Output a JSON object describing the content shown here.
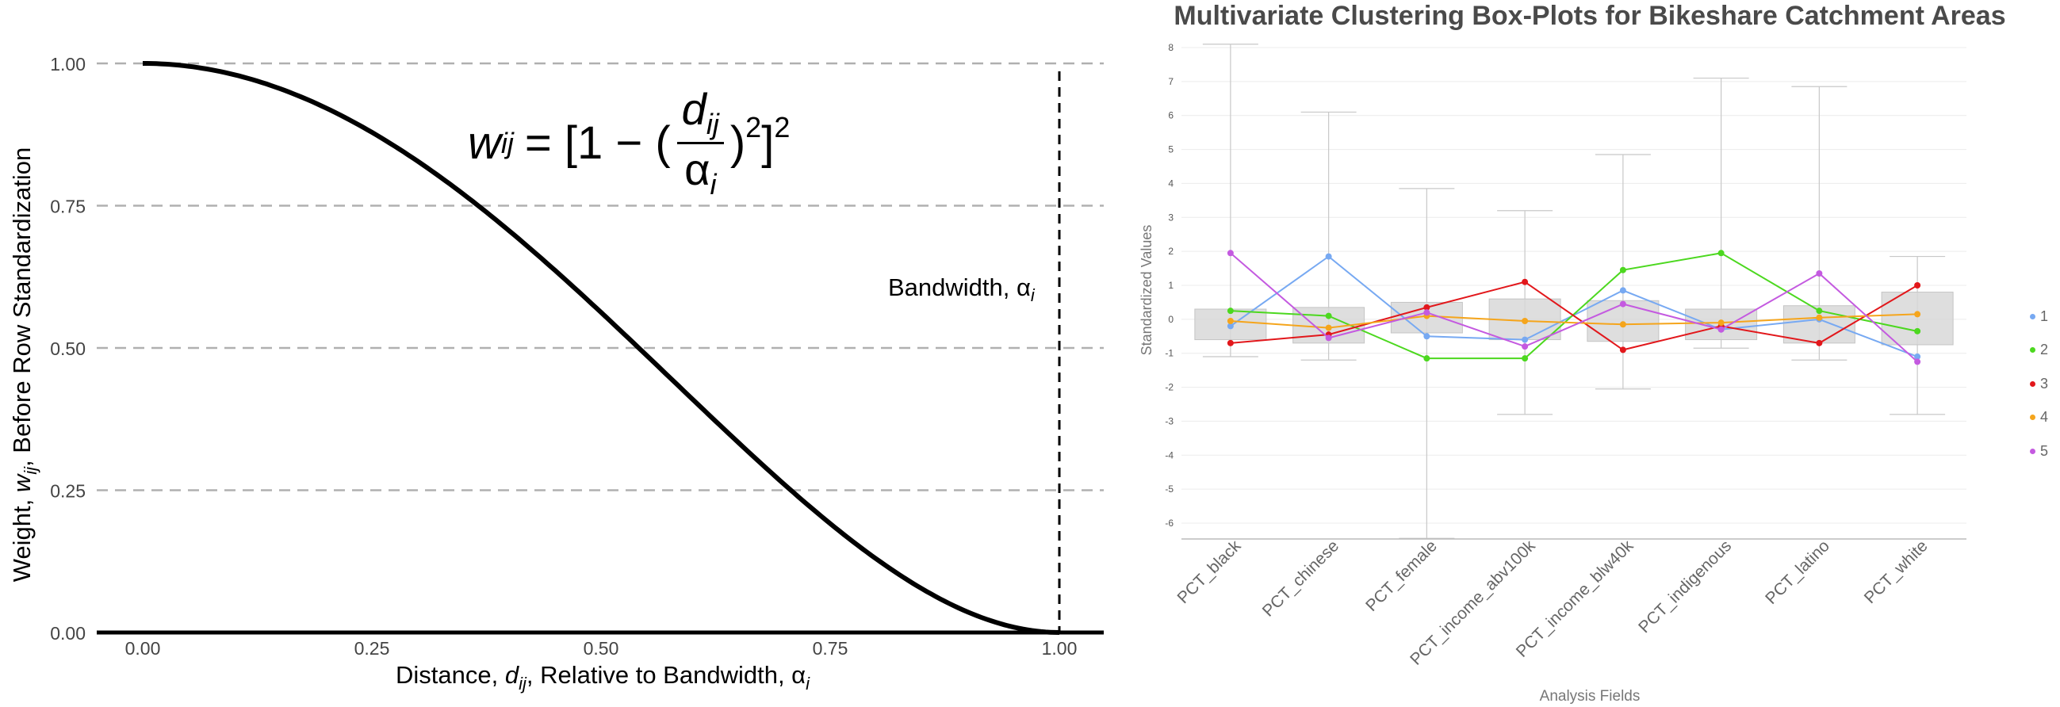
{
  "chart_data": [
    {
      "type": "line",
      "xlabel": "Distance, d_ij, Relative to Bandwidth, α_i",
      "ylabel": "Weight, w_ij, Before Row Standardization",
      "formula": {
        "lhs": "w",
        "lhs_sub": "ij",
        "eq": "= [1 − (",
        "num": "d",
        "num_sub": "ij",
        "den": "α",
        "den_sub": "i",
        "close": ")",
        "sq1": "2",
        "bracket_close": "]",
        "sq2": "2"
      },
      "annotation": "Bandwidth, α_i",
      "xlim": [
        -0.1,
        1.1
      ],
      "ylim": [
        0,
        1
      ],
      "x_ticks": [
        "0.00",
        "0.25",
        "0.50",
        "0.75",
        "1.00"
      ],
      "y_ticks": [
        "0.00",
        "0.25",
        "0.50",
        "0.75",
        "1.00"
      ],
      "bandwidth_x": 1.0,
      "grid": "horizontal-dashed",
      "series": [
        {
          "function": "bisquare",
          "x_start": 0,
          "x_end": 1
        }
      ]
    },
    {
      "type": "box",
      "title": "Multivariate Clustering Box-Plots for Bikeshare Catchment Areas",
      "xlabel": "Analysis Fields",
      "ylabel": "Standardized Values",
      "ylim": [
        -6.5,
        8.2
      ],
      "y_ticks": [
        "8",
        "7",
        "6",
        "5",
        "4",
        "3",
        "2",
        "1",
        "0",
        "-1",
        "-2",
        "-3",
        "-4",
        "-5",
        "-6"
      ],
      "categories": [
        "PCT_black",
        "PCT_chinese",
        "PCT_female",
        "PCT_income_abv100k",
        "PCT_income_blw40k",
        "PCT_indigenous",
        "PCT_latino",
        "PCT_white"
      ],
      "boxes": [
        {
          "min": -1.1,
          "q1": -0.6,
          "q3": 0.3,
          "max": 8.1
        },
        {
          "min": -1.2,
          "q1": -0.7,
          "q3": 0.35,
          "max": 6.1
        },
        {
          "min": -6.45,
          "q1": -0.4,
          "q3": 0.5,
          "max": 3.85
        },
        {
          "min": -2.8,
          "q1": -0.6,
          "q3": 0.6,
          "max": 3.2
        },
        {
          "min": -2.05,
          "q1": -0.65,
          "q3": 0.55,
          "max": 4.85
        },
        {
          "min": -0.85,
          "q1": -0.6,
          "q3": 0.3,
          "max": 7.1
        },
        {
          "min": -1.2,
          "q1": -0.7,
          "q3": 0.4,
          "max": 6.85
        },
        {
          "min": -2.8,
          "q1": -0.75,
          "q3": 0.8,
          "max": 1.85
        }
      ],
      "series": [
        {
          "name": "1",
          "color": "#77a9f2",
          "values": [
            -0.2,
            1.85,
            -0.5,
            -0.6,
            0.85,
            -0.3,
            0.0,
            -1.1
          ]
        },
        {
          "name": "2",
          "color": "#4cd81f",
          "values": [
            0.25,
            0.1,
            -1.15,
            -1.15,
            1.45,
            1.95,
            0.25,
            -0.35
          ]
        },
        {
          "name": "3",
          "color": "#e2171b",
          "values": [
            -0.7,
            -0.45,
            0.35,
            1.1,
            -0.9,
            -0.2,
            -0.7,
            1.0
          ]
        },
        {
          "name": "4",
          "color": "#f5a51c",
          "values": [
            -0.05,
            -0.25,
            0.1,
            -0.05,
            -0.15,
            -0.1,
            0.05,
            0.15
          ]
        },
        {
          "name": "5",
          "color": "#c45ae0",
          "values": [
            1.95,
            -0.55,
            0.2,
            -0.8,
            0.45,
            -0.3,
            1.35,
            -1.25
          ]
        }
      ],
      "legend": "right"
    }
  ]
}
